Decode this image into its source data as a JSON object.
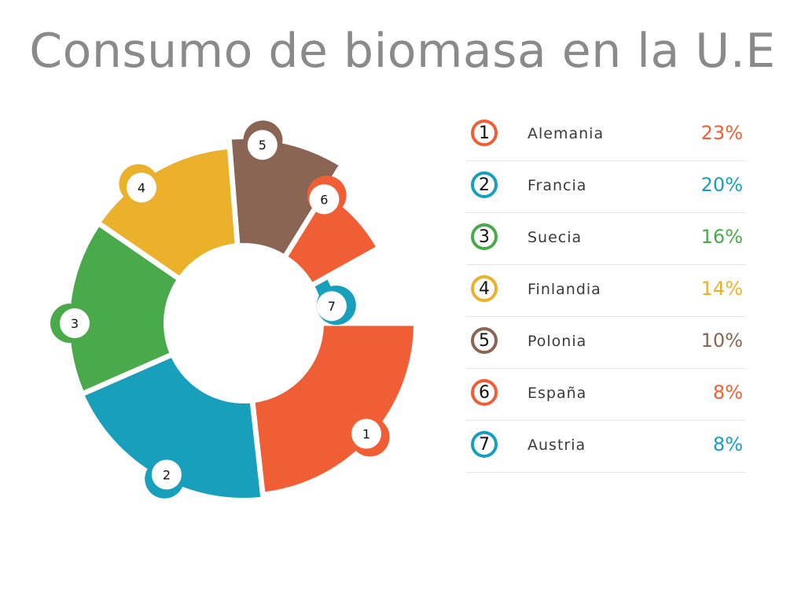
{
  "chart_data": {
    "type": "pie",
    "title": "Consumo de biomasa en la U.E",
    "categories": [
      "Alemania",
      "Francia",
      "Suecia",
      "Finlandia",
      "Polonia",
      "España",
      "Austria"
    ],
    "numbers": [
      "1",
      "2",
      "3",
      "4",
      "5",
      "6",
      "7"
    ],
    "values": [
      23,
      20,
      16,
      14,
      10,
      8,
      8
    ],
    "value_labels": [
      "23%",
      "20%",
      "16%",
      "14%",
      "10%",
      "8%",
      "8%"
    ],
    "colors": [
      "#f05e35",
      "#179fbb",
      "#4aa94a",
      "#ebb12a",
      "#8a6553",
      "#f05e35",
      "#179fbb"
    ],
    "legend_position": "right",
    "donut": true
  }
}
